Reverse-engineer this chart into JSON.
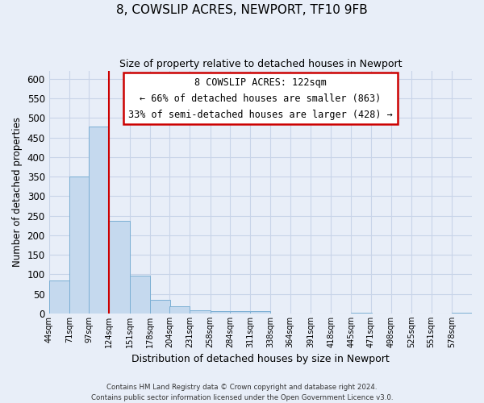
{
  "title": "8, COWSLIP ACRES, NEWPORT, TF10 9FB",
  "subtitle": "Size of property relative to detached houses in Newport",
  "xlabel": "Distribution of detached houses by size in Newport",
  "ylabel": "Number of detached properties",
  "bar_color": "#c5d9ee",
  "bar_edge_color": "#7bafd4",
  "vline_x": 124,
  "vline_color": "#cc0000",
  "bins": [
    44,
    71,
    97,
    124,
    151,
    178,
    204,
    231,
    258,
    284,
    311,
    338,
    364,
    391,
    418,
    445,
    471,
    498,
    525,
    551,
    578,
    605
  ],
  "counts": [
    84,
    350,
    478,
    237,
    97,
    35,
    19,
    8,
    5,
    5,
    5,
    0,
    0,
    0,
    0,
    1,
    0,
    0,
    0,
    0,
    1,
    0
  ],
  "tick_labels": [
    "44sqm",
    "71sqm",
    "97sqm",
    "124sqm",
    "151sqm",
    "178sqm",
    "204sqm",
    "231sqm",
    "258sqm",
    "284sqm",
    "311sqm",
    "338sqm",
    "364sqm",
    "391sqm",
    "418sqm",
    "445sqm",
    "471sqm",
    "498sqm",
    "525sqm",
    "551sqm",
    "578sqm"
  ],
  "ylim": [
    0,
    620
  ],
  "yticks": [
    0,
    50,
    100,
    150,
    200,
    250,
    300,
    350,
    400,
    450,
    500,
    550,
    600
  ],
  "annotation_title": "8 COWSLIP ACRES: 122sqm",
  "annotation_line1": "← 66% of detached houses are smaller (863)",
  "annotation_line2": "33% of semi-detached houses are larger (428) →",
  "annotation_box_color": "#ffffff",
  "annotation_box_edge": "#cc0000",
  "footer_line1": "Contains HM Land Registry data © Crown copyright and database right 2024.",
  "footer_line2": "Contains public sector information licensed under the Open Government Licence v3.0.",
  "background_color": "#e8eef8",
  "plot_bg_color": "#e8eef8",
  "grid_color": "#c8d4e8"
}
